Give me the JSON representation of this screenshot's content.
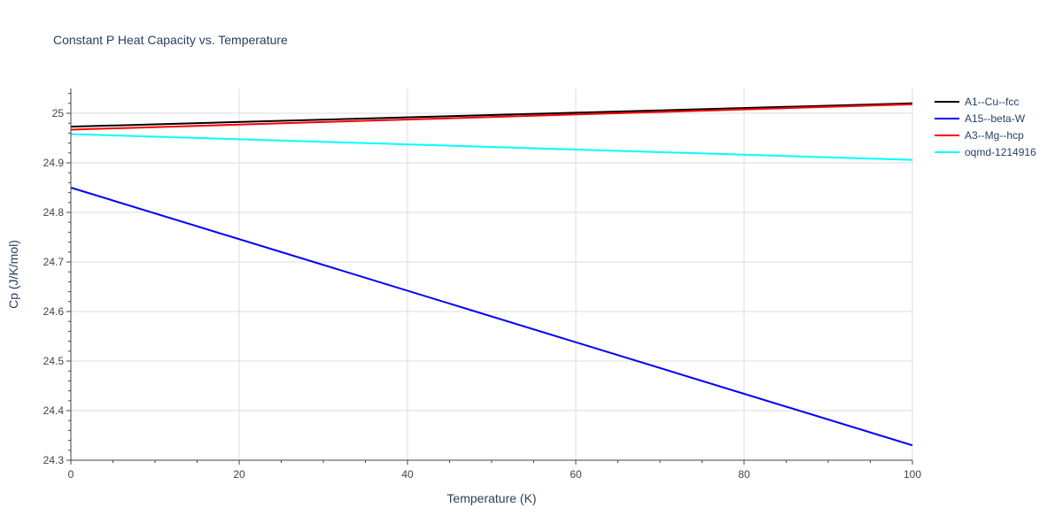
{
  "chart_data": {
    "type": "line",
    "title": "Constant P Heat Capacity vs. Temperature",
    "xlabel": "Temperature (K)",
    "ylabel": "Cp (J/K/mol)",
    "xlim": [
      0,
      100
    ],
    "ylim": [
      24.3,
      25.05
    ],
    "x_ticks": [
      0,
      20,
      40,
      60,
      80,
      100
    ],
    "y_ticks": [
      24.3,
      24.4,
      24.5,
      24.6,
      24.7,
      24.8,
      24.9,
      25
    ],
    "grid": true,
    "legend_position": "top-right",
    "series": [
      {
        "name": "A1--Cu--fcc",
        "color": "#000000",
        "x": [
          0,
          100
        ],
        "values": [
          24.973,
          25.02
        ]
      },
      {
        "name": "A15--beta-W",
        "color": "#0000ff",
        "x": [
          0,
          100
        ],
        "values": [
          24.85,
          24.33
        ]
      },
      {
        "name": "A3--Mg--hcp",
        "color": "#ff0000",
        "x": [
          0,
          100
        ],
        "values": [
          24.967,
          25.018
        ]
      },
      {
        "name": "oqmd-1214916",
        "color": "#00ffff",
        "x": [
          0,
          100
        ],
        "values": [
          24.958,
          24.906
        ]
      }
    ]
  }
}
